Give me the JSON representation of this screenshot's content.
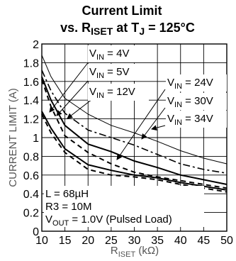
{
  "chart_data": {
    "type": "line",
    "title": {
      "line1": "Current Limit",
      "line2_prefix": "vs. R",
      "line2_sub1": "ISET",
      "line2_mid": " at T",
      "line2_sub2": "J",
      "line2_suffix": " = 125°C"
    },
    "xlabel": {
      "main": "R",
      "sub": "ISET",
      "unit": " (kΩ)"
    },
    "ylabel": "CURRENT LIMIT (A)",
    "xlim": [
      10,
      50
    ],
    "ylim": [
      0,
      2
    ],
    "x_ticks": [
      "10",
      "15",
      "20",
      "25",
      "30",
      "35",
      "40",
      "45",
      "50"
    ],
    "y_ticks": [
      "0",
      "0.2",
      "0.4",
      "0.6",
      "0.8",
      "1",
      "1.2",
      "1.4",
      "1.6",
      "1.8",
      "2"
    ],
    "grid": true,
    "series": [
      {
        "name": "VIN = 4V",
        "style": "dashed",
        "x": [
          10,
          12,
          15,
          20,
          25,
          30,
          35,
          40,
          45,
          50
        ],
        "y": [
          1.25,
          1.05,
          0.84,
          0.66,
          0.6,
          0.58,
          0.55,
          0.5,
          0.46,
          0.42
        ]
      },
      {
        "name": "VIN = 5V",
        "style": "solid",
        "x": [
          10,
          12,
          15,
          20,
          25,
          30,
          35,
          40,
          45,
          50
        ],
        "y": [
          1.28,
          1.1,
          0.88,
          0.71,
          0.65,
          0.6,
          0.57,
          0.52,
          0.48,
          0.44
        ]
      },
      {
        "name": "VIN = 12V",
        "style": "dashed",
        "x": [
          10,
          12,
          15,
          20,
          25,
          30,
          35,
          40,
          45,
          50
        ],
        "y": [
          1.62,
          1.33,
          1.02,
          0.84,
          0.72,
          0.63,
          0.58,
          0.54,
          0.5,
          0.46
        ]
      },
      {
        "name": "VIN = 24V",
        "style": "solid",
        "x": [
          10,
          12,
          15,
          20,
          25,
          30,
          35,
          40,
          45,
          50
        ],
        "y": [
          1.65,
          1.4,
          1.13,
          0.93,
          0.85,
          0.75,
          0.68,
          0.6,
          0.55,
          0.5
        ]
      },
      {
        "name": "VIN = 30V",
        "style": "dashdot",
        "x": [
          10,
          12,
          15,
          20,
          25,
          30,
          35,
          40,
          45,
          50
        ],
        "y": [
          1.72,
          1.5,
          1.26,
          1.08,
          1.0,
          0.92,
          0.82,
          0.72,
          0.66,
          0.62
        ]
      },
      {
        "name": "VIN = 34V",
        "style": "thin",
        "x": [
          10,
          12,
          15,
          20,
          25,
          30,
          35,
          40,
          45,
          50
        ],
        "y": [
          1.88,
          1.65,
          1.42,
          1.25,
          1.13,
          1.05,
          0.96,
          0.86,
          0.78,
          0.72
        ]
      }
    ],
    "legend_labels": [
      {
        "id": "vin4",
        "pre": "V",
        "sub": "IN",
        "post": " = 4V"
      },
      {
        "id": "vin5",
        "pre": "V",
        "sub": "IN",
        "post": " = 5V"
      },
      {
        "id": "vin12",
        "pre": "V",
        "sub": "IN",
        "post": " = 12V"
      },
      {
        "id": "vin24",
        "pre": "V",
        "sub": "IN",
        "post": " = 24V"
      },
      {
        "id": "vin30",
        "pre": "V",
        "sub": "IN",
        "post": " = 30V"
      },
      {
        "id": "vin34",
        "pre": "V",
        "sub": "IN",
        "post": " = 34V"
      }
    ],
    "conditions": {
      "inductor": "L = 68µH",
      "resistor": "R3 = 10M",
      "vout_pre": "V",
      "vout_sub": "OUT",
      "vout_post": " = 1.0V (Pulsed Load)"
    }
  }
}
